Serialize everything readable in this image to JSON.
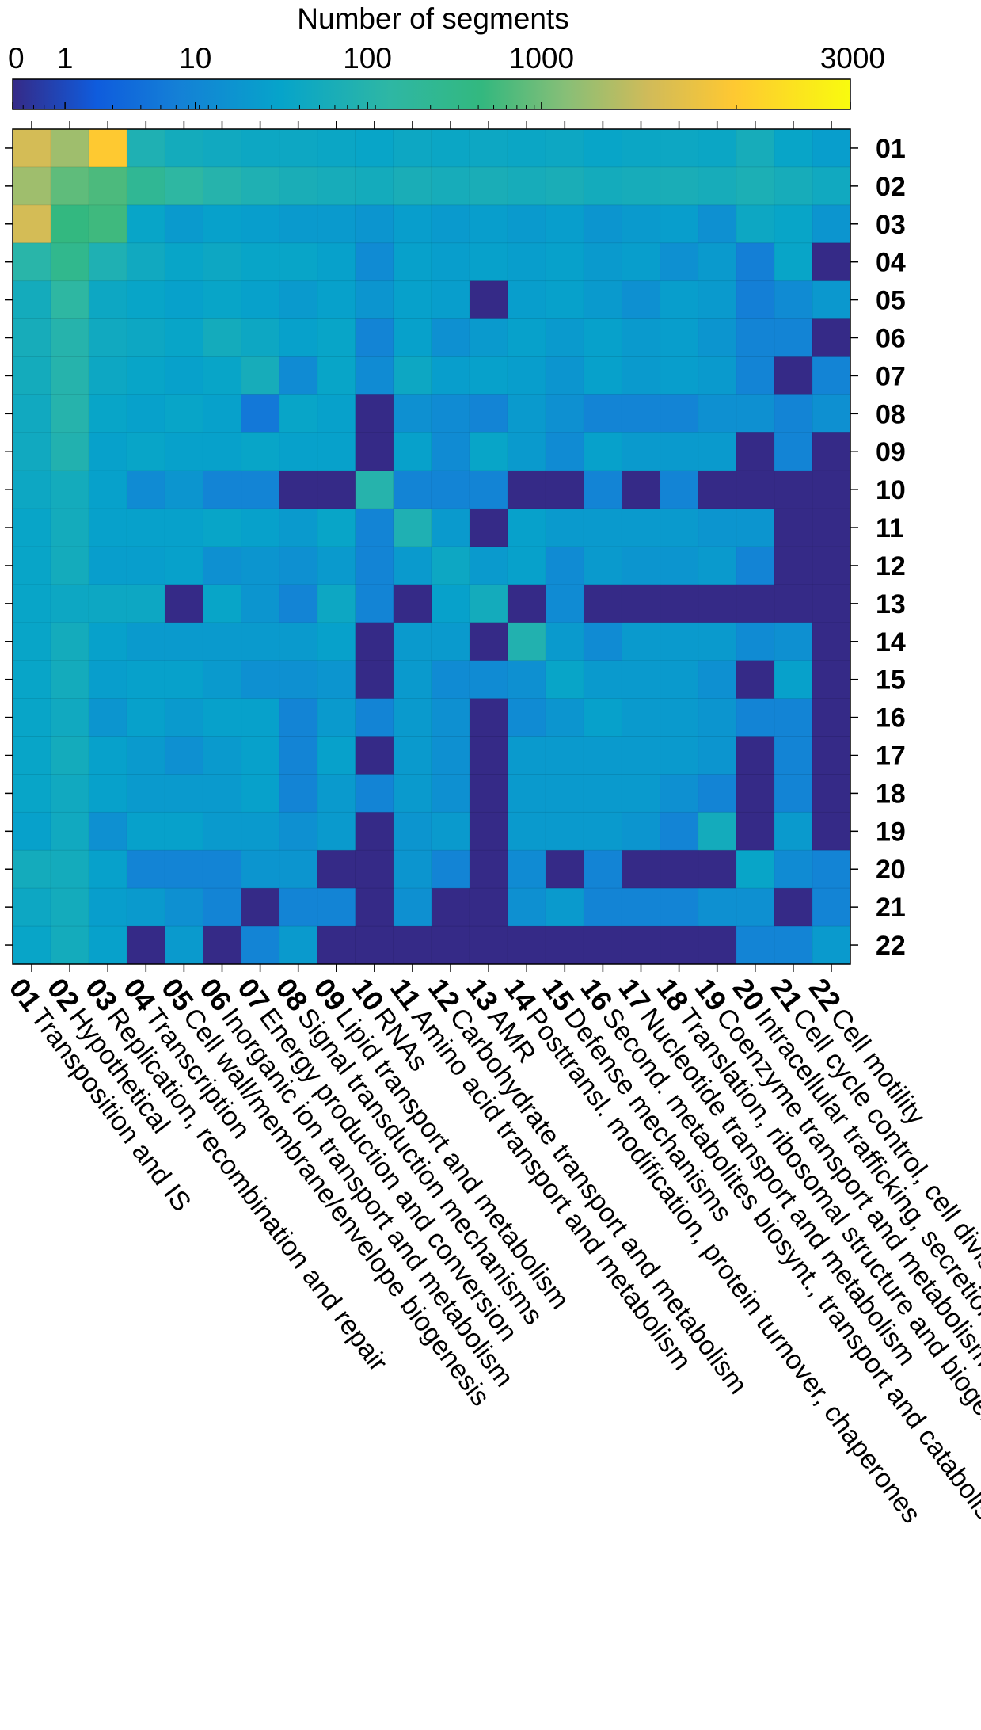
{
  "chart_data": {
    "type": "heatmap",
    "colorbar": {
      "title": "Number of segments",
      "tick_labels": [
        "0",
        "1",
        "10",
        "100",
        "1000",
        "3000"
      ],
      "tick_values": [
        0,
        1,
        10,
        100,
        1000,
        3000
      ],
      "scale": "log",
      "range": [
        0,
        3000
      ],
      "colormap": "parula"
    },
    "row_labels": [
      "01",
      "02",
      "03",
      "04",
      "05",
      "06",
      "07",
      "08",
      "09",
      "10",
      "11",
      "12",
      "13",
      "14",
      "15",
      "16",
      "17",
      "18",
      "19",
      "20",
      "21",
      "22"
    ],
    "col_numbers": [
      "01",
      "02",
      "03",
      "04",
      "05",
      "06",
      "07",
      "08",
      "09",
      "10",
      "11",
      "12",
      "13",
      "14",
      "15",
      "16",
      "17",
      "18",
      "19",
      "20",
      "21",
      "22"
    ],
    "col_names": [
      "Transposition and IS",
      "Hypothetical",
      "Replication, recombination and repair",
      "Transcription",
      "Cell wall/membrane/envelope biogenesis",
      "Inorganic ion transport and metabolism",
      "Energy production and conversion",
      "Signal transduction mechanisms",
      "Lipid transport and metabolism",
      "RNAs",
      "Amino acid transport and metabolism",
      "Carbohydrate transport and metabolism",
      "AMR",
      "Posttransl. modification, protein turnover, chaperones",
      "Defense mechanisms",
      "Second. metabolites biosynt., transport and catabolism",
      "Nucleotide transport and metabolism",
      "Translation, ribosomal structure and biogenesis",
      "Coenzyme transport and metabolism",
      "Intracellular trafficking, secretion, and vesicular transport",
      "Cell cycle control, cell division, chromosome partitioning",
      "Cell motility"
    ],
    "values": [
      [
        1500,
        1200,
        2000,
        60,
        40,
        35,
        30,
        30,
        28,
        25,
        30,
        28,
        30,
        28,
        30,
        25,
        28,
        30,
        28,
        45,
        25,
        18
      ],
      [
        1200,
        800,
        600,
        200,
        120,
        80,
        60,
        50,
        45,
        40,
        50,
        45,
        50,
        45,
        50,
        40,
        45,
        50,
        45,
        55,
        45,
        35
      ],
      [
        1500,
        400,
        500,
        25,
        15,
        20,
        18,
        15,
        15,
        12,
        18,
        15,
        18,
        15,
        18,
        12,
        15,
        18,
        10,
        30,
        25,
        12
      ],
      [
        90,
        250,
        60,
        35,
        25,
        30,
        25,
        25,
        20,
        8,
        20,
        18,
        20,
        18,
        20,
        15,
        18,
        10,
        15,
        5,
        25,
        0
      ],
      [
        40,
        120,
        30,
        25,
        20,
        25,
        20,
        15,
        20,
        12,
        20,
        18,
        0,
        18,
        20,
        15,
        10,
        18,
        15,
        5,
        8,
        14
      ],
      [
        45,
        80,
        35,
        30,
        25,
        40,
        30,
        20,
        25,
        6,
        20,
        10,
        15,
        20,
        15,
        20,
        15,
        18,
        12,
        6,
        6,
        0
      ],
      [
        40,
        80,
        30,
        25,
        20,
        25,
        45,
        8,
        25,
        8,
        30,
        18,
        20,
        18,
        12,
        20,
        15,
        18,
        15,
        6,
        0,
        6
      ],
      [
        35,
        80,
        25,
        20,
        25,
        20,
        4,
        25,
        20,
        0,
        10,
        8,
        6,
        15,
        10,
        6,
        6,
        6,
        10,
        10,
        6,
        10
      ],
      [
        35,
        70,
        20,
        25,
        20,
        20,
        25,
        20,
        20,
        0,
        20,
        8,
        25,
        15,
        8,
        20,
        15,
        15,
        15,
        0,
        6,
        0
      ],
      [
        30,
        40,
        20,
        8,
        12,
        6,
        6,
        0,
        0,
        80,
        6,
        6,
        6,
        0,
        0,
        6,
        0,
        6,
        0,
        0,
        0,
        0
      ],
      [
        25,
        40,
        20,
        20,
        20,
        25,
        20,
        15,
        25,
        6,
        60,
        15,
        0,
        20,
        15,
        15,
        15,
        15,
        12,
        12,
        0,
        0
      ],
      [
        25,
        40,
        18,
        18,
        20,
        10,
        12,
        10,
        15,
        6,
        15,
        30,
        15,
        20,
        8,
        15,
        12,
        12,
        15,
        6,
        0,
        0
      ],
      [
        25,
        30,
        30,
        30,
        0,
        25,
        12,
        6,
        30,
        6,
        0,
        20,
        40,
        0,
        8,
        0,
        0,
        0,
        0,
        0,
        0,
        0
      ],
      [
        25,
        40,
        20,
        15,
        15,
        15,
        15,
        15,
        20,
        0,
        15,
        15,
        0,
        70,
        15,
        8,
        15,
        15,
        15,
        8,
        10,
        0
      ],
      [
        25,
        40,
        18,
        20,
        20,
        15,
        10,
        10,
        12,
        0,
        15,
        8,
        8,
        10,
        25,
        15,
        15,
        15,
        10,
        0,
        20,
        0
      ],
      [
        25,
        35,
        12,
        20,
        15,
        20,
        20,
        6,
        15,
        6,
        15,
        10,
        0,
        8,
        12,
        20,
        15,
        15,
        12,
        6,
        6,
        0
      ],
      [
        25,
        40,
        20,
        15,
        10,
        15,
        20,
        6,
        20,
        0,
        15,
        10,
        0,
        15,
        15,
        15,
        15,
        15,
        12,
        0,
        6,
        0
      ],
      [
        25,
        35,
        20,
        15,
        15,
        15,
        20,
        6,
        15,
        6,
        15,
        10,
        0,
        15,
        15,
        15,
        15,
        10,
        6,
        0,
        6,
        0
      ],
      [
        20,
        35,
        10,
        20,
        20,
        15,
        15,
        10,
        15,
        0,
        12,
        15,
        0,
        15,
        15,
        15,
        12,
        6,
        40,
        0,
        15,
        0
      ],
      [
        40,
        40,
        20,
        6,
        6,
        6,
        12,
        12,
        0,
        0,
        12,
        6,
        0,
        8,
        0,
        6,
        0,
        0,
        0,
        25,
        8,
        6
      ],
      [
        30,
        40,
        18,
        15,
        10,
        6,
        0,
        6,
        6,
        0,
        10,
        0,
        0,
        10,
        15,
        6,
        6,
        6,
        10,
        10,
        0,
        6
      ],
      [
        25,
        40,
        20,
        0,
        15,
        0,
        6,
        15,
        0,
        0,
        0,
        0,
        0,
        0,
        0,
        0,
        0,
        0,
        0,
        6,
        6,
        15
      ]
    ]
  }
}
